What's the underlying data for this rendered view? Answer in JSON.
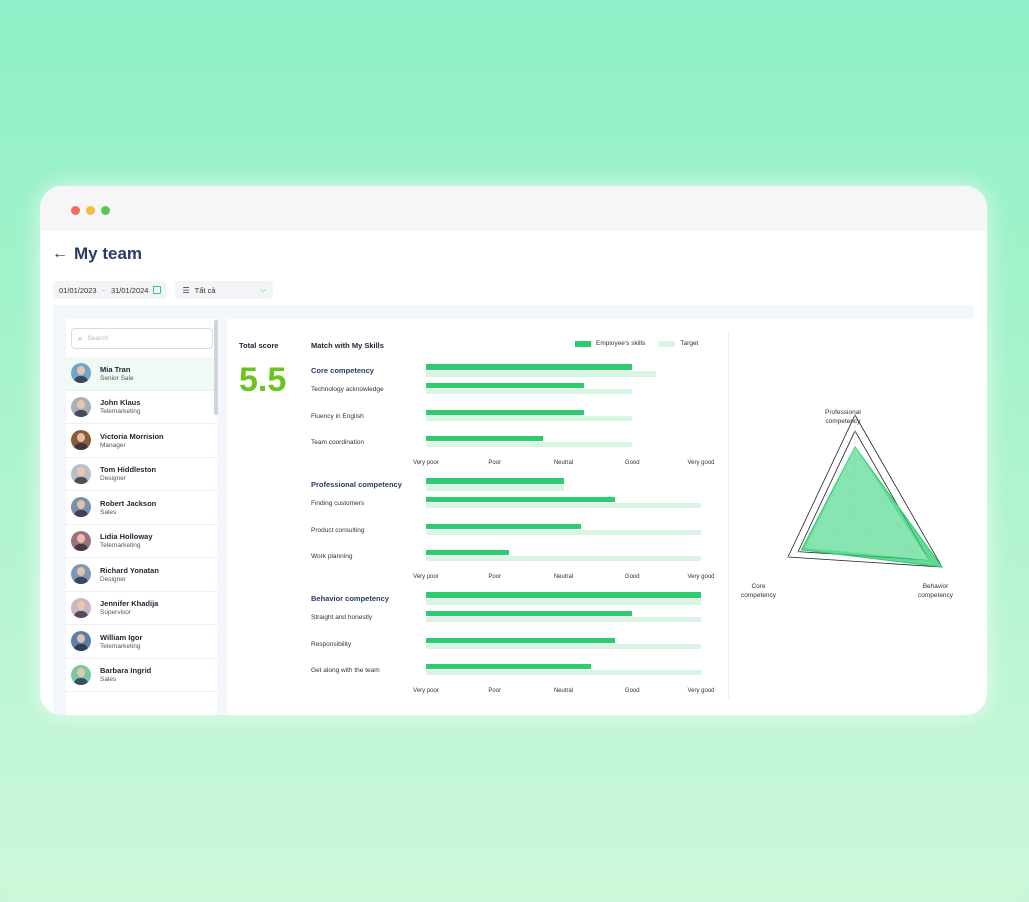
{
  "header": {
    "title": "My team",
    "back_icon": "arrow-left-icon"
  },
  "filters": {
    "date_from": "01/01/2023",
    "date_sep": "~",
    "date_to": "31/01/2024",
    "select_value": "Tất cả"
  },
  "search": {
    "placeholder": "Search"
  },
  "employees": [
    {
      "name": "Mia Tran",
      "role": "Senior Sale",
      "active": true,
      "color": "#6fa8c7"
    },
    {
      "name": "John Klaus",
      "role": "Telemarketing",
      "active": false,
      "color": "#a7b0ba"
    },
    {
      "name": "Victoria Morrision",
      "role": "Manager",
      "active": false,
      "color": "#8a5a3c"
    },
    {
      "name": "Tom Hiddleston",
      "role": "Designer",
      "active": false,
      "color": "#b9bfc8"
    },
    {
      "name": "Robert Jackson",
      "role": "Sales",
      "active": false,
      "color": "#7a8fa8"
    },
    {
      "name": "Lidia Holloway",
      "role": "Telemarketing",
      "active": false,
      "color": "#9c6f7d"
    },
    {
      "name": "Richard Yonatan",
      "role": "Designer",
      "active": false,
      "color": "#7d98b5"
    },
    {
      "name": "Jennifer Khadija",
      "role": "Supervisor",
      "active": false,
      "color": "#c9b8c3"
    },
    {
      "name": "William Igor",
      "role": "Telemarketing",
      "active": false,
      "color": "#5a7ea8"
    },
    {
      "name": "Barbara Ingrid",
      "role": "Sales",
      "active": false,
      "color": "#7cc6a8"
    }
  ],
  "score": {
    "label": "Total score",
    "value": "5.5"
  },
  "chart_data": {
    "type": "bar",
    "title": "Match with My Skills",
    "legend": [
      "Employee's skills",
      "Target"
    ],
    "scale": [
      "Very poor",
      "Poor",
      "Neutral",
      "Good",
      "Very good"
    ],
    "xlim": [
      0,
      4
    ],
    "groups": [
      {
        "name": "Core competency",
        "employee": 3.0,
        "target": 3.35,
        "rows": [
          {
            "label": "Technology acknowledge",
            "employee": 2.3,
            "target": 3.0
          },
          {
            "label": "Fluency in English",
            "employee": 2.3,
            "target": 3.0
          },
          {
            "label": "Team coordination",
            "employee": 1.7,
            "target": 3.0
          }
        ]
      },
      {
        "name": "Professional competency",
        "employee": 2.0,
        "target": 2.0,
        "rows": [
          {
            "label": "Finding customers",
            "employee": 2.75,
            "target": 4.0
          },
          {
            "label": "Product consulting",
            "employee": 2.25,
            "target": 4.0
          },
          {
            "label": "Work planning",
            "employee": 1.2,
            "target": 4.0
          }
        ]
      },
      {
        "name": "Behavior competency",
        "employee": 4.0,
        "target": 4.0,
        "rows": [
          {
            "label": "Straight and honestly",
            "employee": 3.0,
            "target": 4.0
          },
          {
            "label": "Responsibility",
            "employee": 2.75,
            "target": 4.0
          },
          {
            "label": "Get along with the team",
            "employee": 2.4,
            "target": 4.0
          }
        ]
      }
    ]
  },
  "radar_data": {
    "type": "radar",
    "axes": [
      "Professional competency",
      "Behavior competency",
      "Core competency"
    ],
    "employee": [
      0.7,
      1.0,
      0.8
    ],
    "target": [
      0.7,
      0.85,
      0.75
    ],
    "colors": {
      "employee": "#2ecc71",
      "target": "#a8ecc6"
    }
  },
  "labels": {
    "professional_l1": "Professional",
    "professional_l2": "competency",
    "behavior_l1": "Behavior",
    "behavior_l2": "competency",
    "core_l1": "Core",
    "core_l2": "competency"
  },
  "colors": {
    "accent": "#2ecc71",
    "title": "#2b3a67",
    "score": "#6cc21f"
  }
}
